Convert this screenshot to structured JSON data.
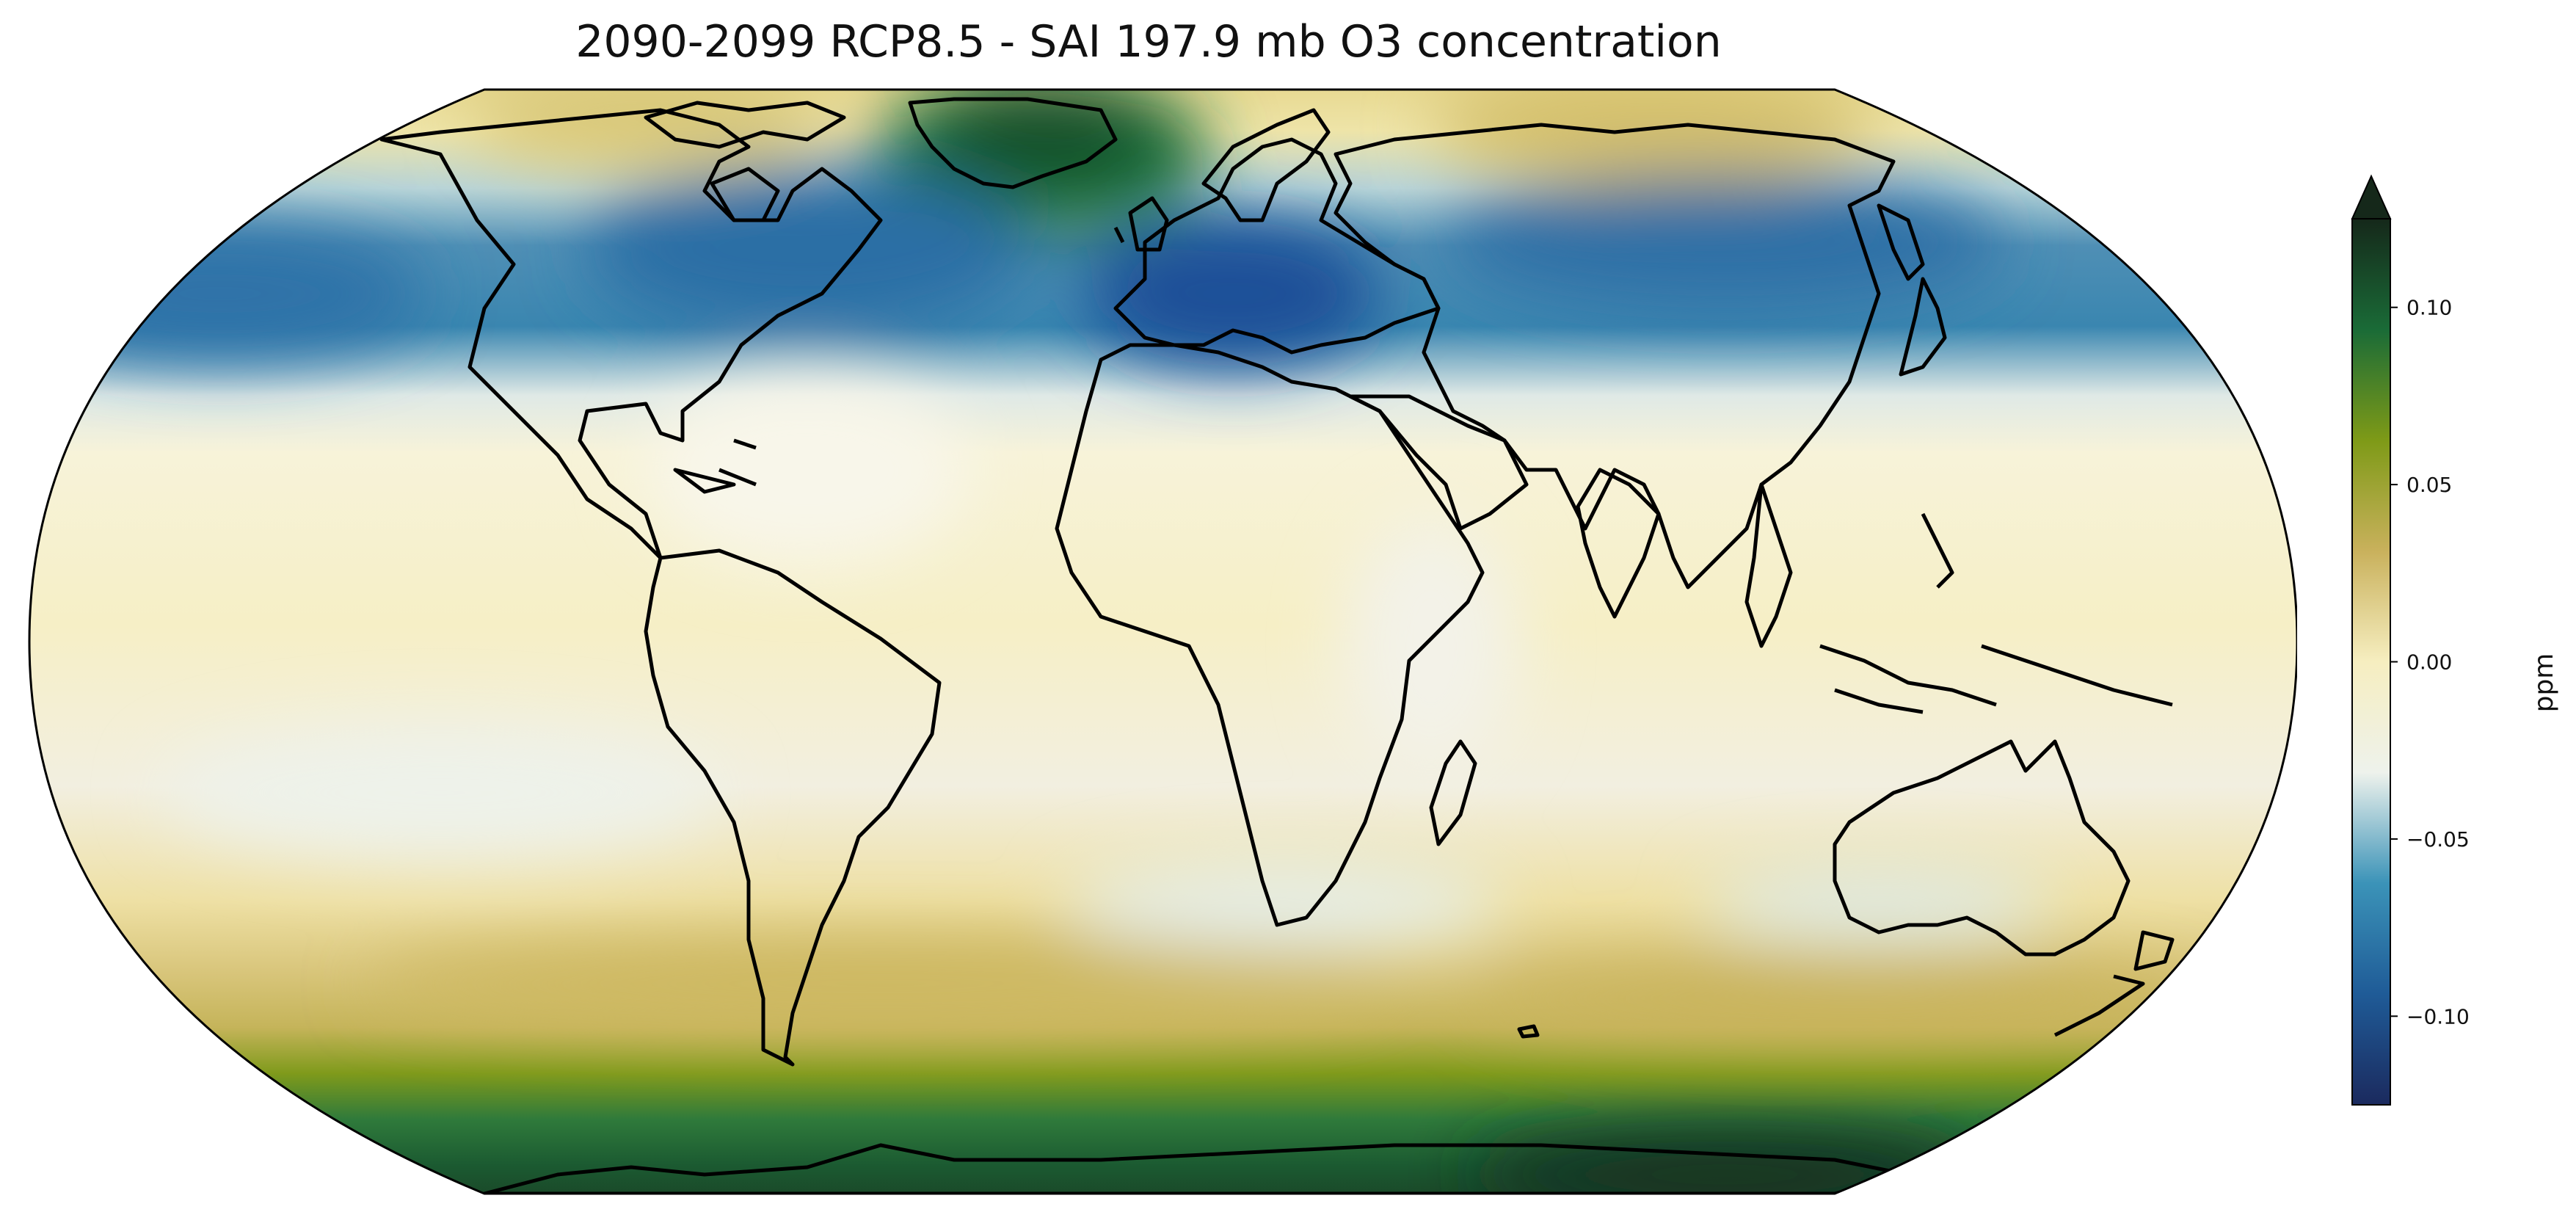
{
  "figure": {
    "title": "2090-2099 RCP8.5 - SAI 197.9 mb O3 concentration"
  },
  "map": {
    "projection": "robinson",
    "coastlines": true,
    "field_description": "difference field with positive anomalies over Greenland and Southern Ocean/Antarctica, negative anomalies over the North Atlantic, Mediterranean and North Pacific"
  },
  "colorbar": {
    "label": "ppm",
    "ticks": [
      "0.10",
      "0.05",
      "0.00",
      "−0.05",
      "−0.10"
    ],
    "tick_values": [
      0.1,
      0.05,
      0.0,
      -0.05,
      -0.1
    ],
    "range": [
      -0.125,
      0.125
    ],
    "extend": "max",
    "colors": [
      "#1b2a5e",
      "#1f5b97",
      "#3b93b8",
      "#eef2ec",
      "#f6eec0",
      "#c9b15c",
      "#7e9a17",
      "#1a6b37",
      "#15281a"
    ]
  }
}
